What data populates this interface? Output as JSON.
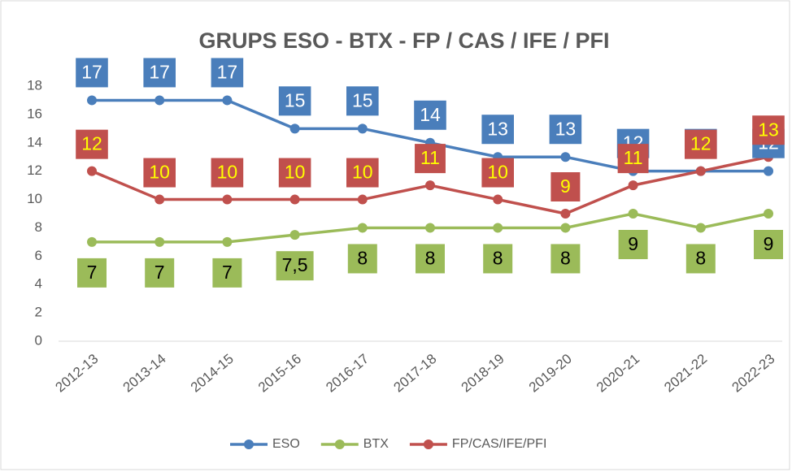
{
  "chart_data": {
    "type": "line",
    "title": "GRUPS ESO - BTX - FP / CAS / IFE / PFI",
    "categories": [
      "2012-13",
      "2013-14",
      "2014-15",
      "2015-16",
      "2016-17",
      "2017-18",
      "2018-19",
      "2019-20",
      "2020-21",
      "2021-22",
      "2022-23"
    ],
    "series": [
      {
        "name": "ESO",
        "color": "#4a7ebb",
        "values": [
          17,
          17,
          17,
          15,
          15,
          14,
          13,
          13,
          12,
          12,
          12
        ]
      },
      {
        "name": "BTX",
        "color": "#9bbb59",
        "values": [
          7,
          7,
          7,
          7.5,
          8,
          8,
          8,
          8,
          9,
          8,
          9
        ],
        "value_labels": [
          "7",
          "7",
          "7",
          "7,5",
          "8",
          "8",
          "8",
          "8",
          "9",
          "8",
          "9"
        ]
      },
      {
        "name": "FP/CAS/IFE/PFI",
        "color": "#c0504d",
        "values": [
          12,
          10,
          10,
          10,
          10,
          11,
          10,
          9,
          11,
          12,
          13
        ]
      }
    ],
    "ylim": [
      0,
      18
    ],
    "yticks": [
      0,
      2,
      4,
      6,
      8,
      10,
      12,
      14,
      16,
      18
    ],
    "grid": false,
    "legend": "bottom"
  }
}
